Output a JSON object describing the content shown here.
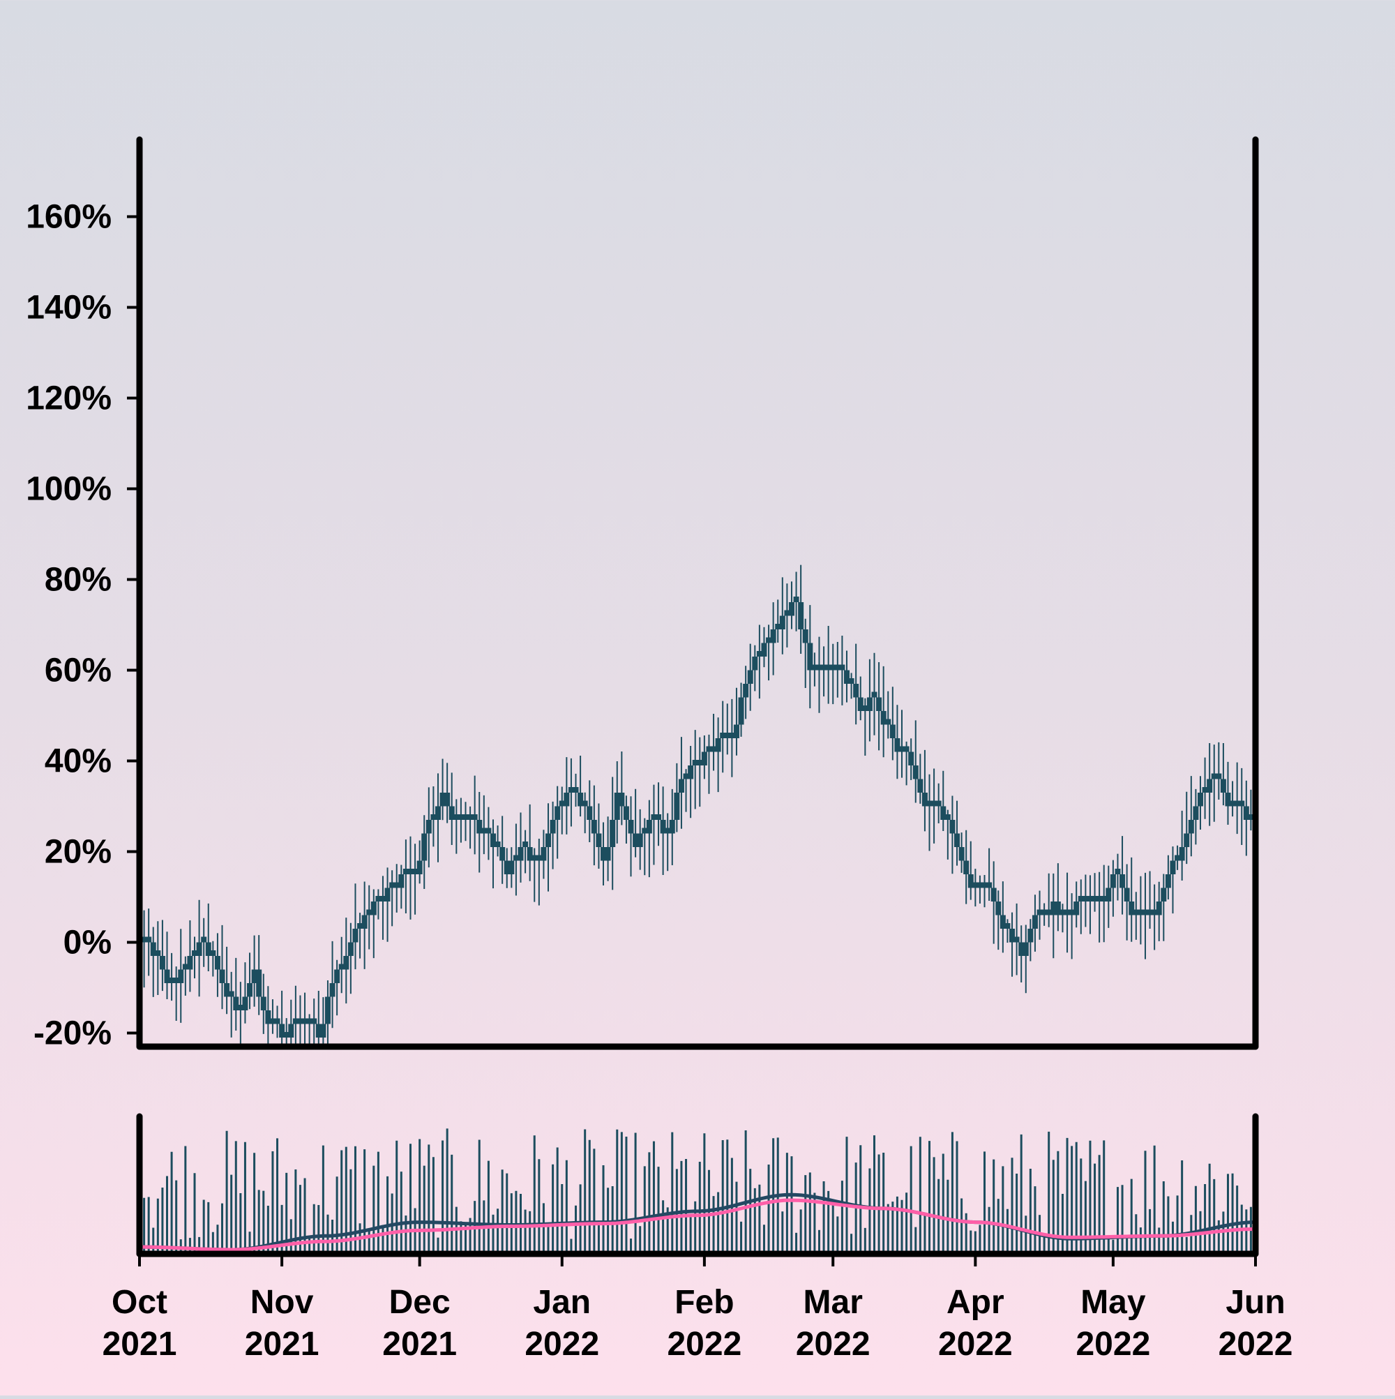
{
  "chart_data": {
    "type": "ohlc",
    "y_tick_labels": [
      "-20%",
      "0%",
      "20%",
      "40%",
      "60%",
      "80%",
      "100%",
      "120%",
      "140%",
      "160%"
    ],
    "y_ticks": [
      -20,
      0,
      20,
      40,
      60,
      80,
      100,
      120,
      140,
      160
    ],
    "ylim": [
      -23,
      177
    ],
    "x_tick_labels": [
      {
        "month": "Oct",
        "year": "2021",
        "date": "2021-10-01"
      },
      {
        "month": "Nov",
        "year": "2021",
        "date": "2021-11-01"
      },
      {
        "month": "Dec",
        "year": "2021",
        "date": "2021-12-01"
      },
      {
        "month": "Jan",
        "year": "2022",
        "date": "2022-01-01"
      },
      {
        "month": "Feb",
        "year": "2022",
        "date": "2022-02-01"
      },
      {
        "month": "Mar",
        "year": "2022",
        "date": "2022-03-01"
      },
      {
        "month": "Apr",
        "year": "2022",
        "date": "2022-04-01"
      },
      {
        "month": "May",
        "year": "2022",
        "date": "2022-05-01"
      },
      {
        "month": "Jun",
        "year": "2022",
        "date": "2022-06-01"
      }
    ],
    "xlim": [
      "2021-10-01",
      "2022-06-01"
    ],
    "series": [
      {
        "kind": "price_percent_change",
        "color": "#1c4d5e",
        "points": [
          [
            "2021-10-01",
            0
          ],
          [
            "2021-10-05",
            -3
          ],
          [
            "2021-10-08",
            -10
          ],
          [
            "2021-10-12",
            -3
          ],
          [
            "2021-10-15",
            0
          ],
          [
            "2021-10-19",
            -8
          ],
          [
            "2021-10-22",
            -16
          ],
          [
            "2021-10-26",
            -7
          ],
          [
            "2021-10-29",
            -19
          ],
          [
            "2021-11-02",
            -20
          ],
          [
            "2021-11-05",
            -17
          ],
          [
            "2021-11-09",
            -20
          ],
          [
            "2021-11-12",
            -10
          ],
          [
            "2021-11-16",
            0
          ],
          [
            "2021-11-19",
            5
          ],
          [
            "2021-11-23",
            10
          ],
          [
            "2021-11-26",
            13
          ],
          [
            "2021-11-30",
            16
          ],
          [
            "2021-12-03",
            26
          ],
          [
            "2021-12-06",
            33
          ],
          [
            "2021-12-09",
            26
          ],
          [
            "2021-12-13",
            26
          ],
          [
            "2021-12-16",
            24
          ],
          [
            "2021-12-20",
            16
          ],
          [
            "2021-12-23",
            20
          ],
          [
            "2021-12-27",
            18
          ],
          [
            "2021-12-30",
            28
          ],
          [
            "2022-01-03",
            33
          ],
          [
            "2022-01-06",
            30
          ],
          [
            "2022-01-10",
            17
          ],
          [
            "2022-01-13",
            33
          ],
          [
            "2022-01-17",
            22
          ],
          [
            "2022-01-20",
            27
          ],
          [
            "2022-01-24",
            24
          ],
          [
            "2022-01-27",
            36
          ],
          [
            "2022-01-31",
            40
          ],
          [
            "2022-02-03",
            43
          ],
          [
            "2022-02-07",
            45
          ],
          [
            "2022-02-10",
            58
          ],
          [
            "2022-02-14",
            65
          ],
          [
            "2022-02-17",
            69
          ],
          [
            "2022-02-21",
            75
          ],
          [
            "2022-02-24",
            61
          ],
          [
            "2022-02-28",
            59
          ],
          [
            "2022-03-03",
            61
          ],
          [
            "2022-03-07",
            50
          ],
          [
            "2022-03-10",
            54
          ],
          [
            "2022-03-14",
            44
          ],
          [
            "2022-03-17",
            42
          ],
          [
            "2022-03-21",
            30
          ],
          [
            "2022-03-24",
            30
          ],
          [
            "2022-03-28",
            22
          ],
          [
            "2022-03-31",
            12
          ],
          [
            "2022-04-04",
            12
          ],
          [
            "2022-04-07",
            3
          ],
          [
            "2022-04-11",
            -2
          ],
          [
            "2022-04-14",
            5
          ],
          [
            "2022-04-18",
            8
          ],
          [
            "2022-04-21",
            5
          ],
          [
            "2022-04-25",
            10
          ],
          [
            "2022-04-28",
            8
          ],
          [
            "2022-05-02",
            16
          ],
          [
            "2022-05-05",
            5
          ],
          [
            "2022-05-09",
            5
          ],
          [
            "2022-05-12",
            11
          ],
          [
            "2022-05-16",
            22
          ],
          [
            "2022-05-19",
            30
          ],
          [
            "2022-05-23",
            37
          ],
          [
            "2022-05-26",
            30
          ],
          [
            "2022-05-30",
            28
          ],
          [
            "2022-06-01",
            27
          ]
        ]
      }
    ],
    "volume_panel": {
      "bar_color": "#1c4d5e",
      "moving_averages": [
        {
          "color": "#244862",
          "level": [
            0.02,
            0.0,
            0.1,
            0.2,
            0.18,
            0.2,
            0.28,
            0.4,
            0.3,
            0.2,
            0.08,
            0.1,
            0.2
          ]
        },
        {
          "color": "#ff5fa8",
          "level": [
            0.02,
            0.0,
            0.06,
            0.14,
            0.17,
            0.19,
            0.25,
            0.36,
            0.3,
            0.2,
            0.09,
            0.1,
            0.15
          ]
        }
      ]
    },
    "grid": false,
    "legend": "none"
  }
}
